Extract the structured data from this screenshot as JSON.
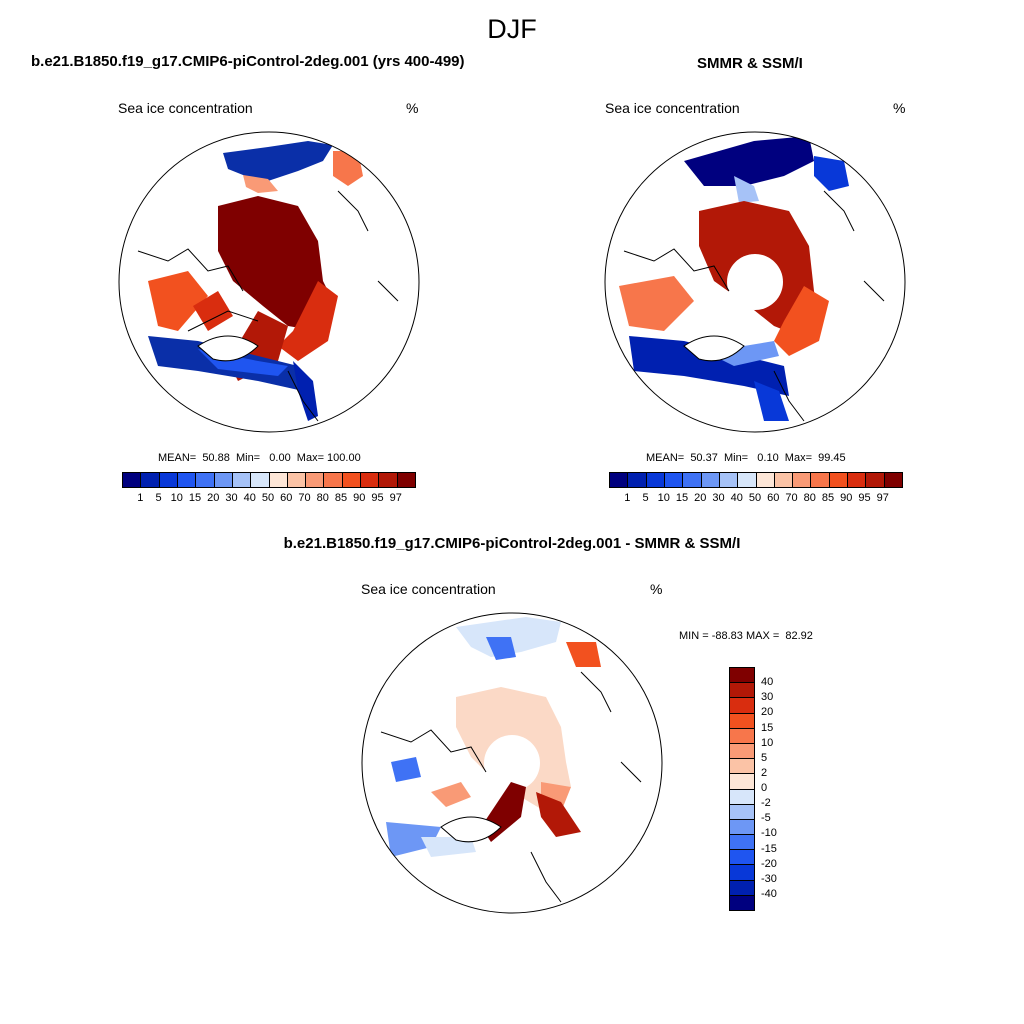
{
  "figure": {
    "title": "DJF"
  },
  "panels": [
    {
      "title": "b.e21.B1850.f19_g17.CMIP6-piControl-2deg.001 (yrs 400-499)",
      "variable_label": "Sea ice concentration",
      "unit_label": "%",
      "stats": "MEAN=  50.88  Min=   0.00  Max= 100.00"
    },
    {
      "title": "SMMR & SSM/I",
      "variable_label": "Sea ice concentration",
      "unit_label": "%",
      "stats": "MEAN=  50.37  Min=   0.10  Max=  99.45"
    },
    {
      "title": "b.e21.B1850.f19_g17.CMIP6-piControl-2deg.001 - SMMR & SSM/I",
      "variable_label": "Sea ice concentration",
      "unit_label": "%",
      "stats": "MIN = -88.83 MAX =  82.92"
    }
  ],
  "colorbars": {
    "concentration": {
      "labels": [
        "1",
        "5",
        "10",
        "15",
        "20",
        "30",
        "40",
        "50",
        "60",
        "70",
        "80",
        "85",
        "90",
        "95",
        "97"
      ],
      "colors": [
        "#00007f",
        "#0020b0",
        "#0838d8",
        "#1f55f0",
        "#3f72f5",
        "#6d97f5",
        "#a6c2f7",
        "#d7e6fa",
        "#fde6d7",
        "#fbc3a6",
        "#f99a76",
        "#f7764b",
        "#f2511f",
        "#d92d0f",
        "#b21807",
        "#7f0000"
      ]
    },
    "difference": {
      "labels": [
        "40",
        "30",
        "20",
        "15",
        "10",
        "5",
        "2",
        "0",
        "-2",
        "-5",
        "-10",
        "-15",
        "-20",
        "-30",
        "-40"
      ],
      "colors": [
        "#7f0000",
        "#b21807",
        "#d92d0f",
        "#f2511f",
        "#f7764b",
        "#f99a76",
        "#fbc3a6",
        "#fde6d7",
        "#d7e6fa",
        "#a6c2f7",
        "#6d97f5",
        "#3f72f5",
        "#1f55f0",
        "#0838d8",
        "#0020b0",
        "#00007f"
      ]
    }
  }
}
